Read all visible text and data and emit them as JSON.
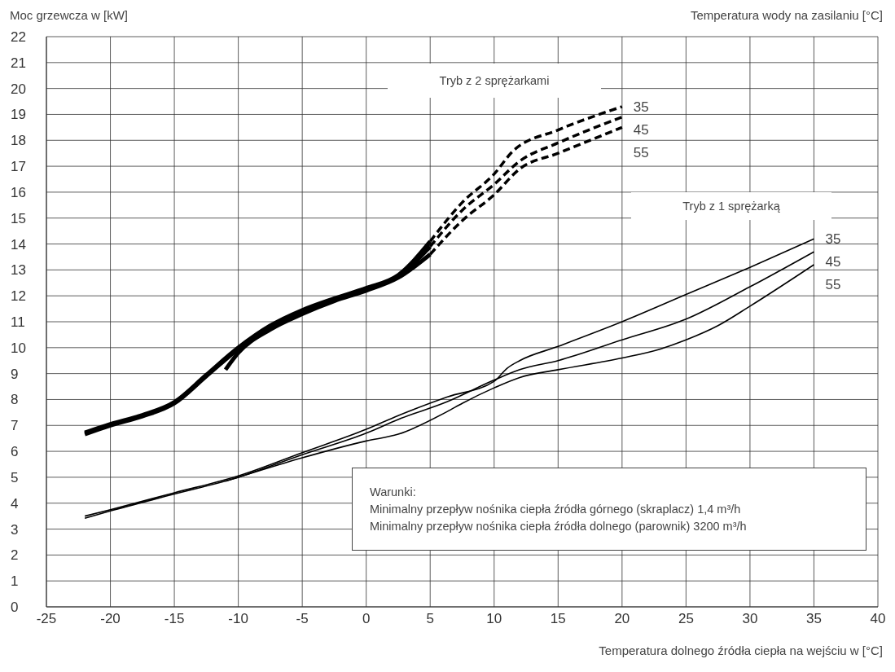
{
  "chart_data": {
    "type": "line",
    "ylabel": "Moc grzewcza w [kW]",
    "xlabel": "Temperatura dolnego źródła ciepła na wejściu w [°C]",
    "legend_title": "Temperatura wody na zasilaniu [°C]",
    "xlim": [
      -25,
      40
    ],
    "xticks": [
      -25,
      -20,
      -15,
      -10,
      -5,
      0,
      5,
      10,
      15,
      20,
      25,
      30,
      35,
      40
    ],
    "ylim": [
      0,
      22
    ],
    "yticks": [
      0,
      1,
      2,
      3,
      4,
      5,
      6,
      7,
      8,
      9,
      10,
      11,
      12,
      13,
      14,
      15,
      16,
      17,
      18,
      19,
      20,
      21,
      22
    ],
    "grid": true,
    "marker": "none",
    "annotations": [
      "Tryb z 2 sprężarkami",
      "Tryb z 1 sprężarką",
      "Warunki:\nMinimalny przepływ nośnika ciepła źródła górnego (skraplacz) 1,4 m³/h\nMinimalny przepływ nośnika ciepła źródła dolnego (parownik) 3200 m³/h"
    ],
    "series": [
      {
        "color": "#000000",
        "line_style": "solid",
        "x": [
          -22,
          -20,
          -17.5,
          -15,
          -12.5,
          -10,
          -7.5,
          -5,
          -2.5,
          0,
          2.5,
          5
        ],
        "values": [
          6.72,
          7.05,
          7.4,
          7.9,
          8.95,
          10.0,
          10.85,
          11.45,
          11.9,
          12.3,
          12.8,
          14.1
        ]
      },
      {
        "color": "#000000",
        "line_style": "solid",
        "x": [
          -22,
          -20,
          -17.5,
          -15,
          -12.5,
          -10,
          -7.5,
          -5,
          -2.5,
          0,
          2.5,
          5
        ],
        "values": [
          6.66,
          7.0,
          7.35,
          7.85,
          8.9,
          9.95,
          10.8,
          11.4,
          11.85,
          12.25,
          12.75,
          13.9
        ]
      },
      {
        "color": "#000000",
        "line_style": "solid",
        "x": [
          -11,
          -10,
          -7.5,
          -5,
          -2.5,
          0,
          2.5,
          5
        ],
        "values": [
          9.15,
          9.8,
          10.7,
          11.3,
          11.8,
          12.2,
          12.7,
          13.6
        ]
      },
      {
        "name": "35",
        "color": "#000000",
        "line_style": "dashed",
        "x": [
          5,
          7.5,
          10,
          11.5,
          15,
          20
        ],
        "values": [
          14.1,
          15.6,
          16.7,
          17.6,
          18.4,
          19.3
        ]
      },
      {
        "name": "45",
        "color": "#000000",
        "line_style": "dashed",
        "x": [
          5,
          7.5,
          10,
          12,
          15,
          20
        ],
        "values": [
          13.9,
          15.3,
          16.3,
          17.2,
          17.9,
          18.9
        ]
      },
      {
        "name": "55",
        "color": "#000000",
        "line_style": "dashed",
        "x": [
          5,
          7.5,
          10,
          12,
          15,
          20
        ],
        "values": [
          13.6,
          14.9,
          15.9,
          16.9,
          17.5,
          18.5
        ]
      },
      {
        "name": "35",
        "color": "#000000",
        "line_style": "solid",
        "x": [
          -22,
          -20,
          -15,
          -10,
          -5,
          0,
          2.5,
          6.35,
          10,
          11,
          12,
          15,
          20,
          25,
          30,
          35
        ],
        "values": [
          3.5,
          3.75,
          4.4,
          5.05,
          5.95,
          6.85,
          7.38,
          8.1,
          8.7,
          9.2,
          9.5,
          10.05,
          11.0,
          12.05,
          13.1,
          14.2
        ]
      },
      {
        "name": "45",
        "color": "#000000",
        "line_style": "solid",
        "x": [
          -22,
          -20,
          -15,
          -10,
          -5,
          0,
          2.5,
          6.35,
          10,
          12,
          15,
          20,
          25,
          30,
          35
        ],
        "values": [
          3.42,
          3.7,
          4.35,
          5.0,
          5.87,
          6.7,
          7.23,
          7.92,
          8.75,
          9.15,
          9.5,
          10.3,
          11.1,
          12.35,
          13.7
        ]
      },
      {
        "name": "55",
        "color": "#000000",
        "line_style": "solid",
        "x": [
          -11,
          -10,
          -5,
          0,
          2.5,
          6.35,
          7.5,
          10,
          12,
          15,
          20,
          23,
          25,
          27.5,
          30,
          35
        ],
        "values": [
          4.85,
          5.0,
          5.75,
          6.4,
          6.66,
          7.54,
          7.85,
          8.45,
          8.85,
          9.15,
          9.6,
          9.95,
          10.3,
          10.85,
          11.6,
          13.2
        ]
      }
    ]
  }
}
